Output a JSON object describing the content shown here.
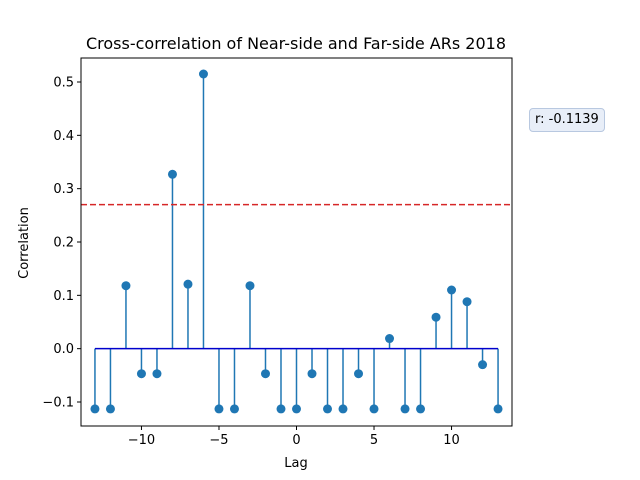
{
  "chart_data": {
    "type": "stem",
    "title": "Cross-correlation of Near-side and Far-side ARs 2018",
    "xlabel": "Lag",
    "ylabel": "Correlation",
    "xlim": [
      -13.9,
      13.9
    ],
    "ylim": [
      -0.145,
      0.545
    ],
    "xticks": [
      -10,
      -5,
      0,
      5,
      10
    ],
    "xtick_labels": [
      "−10",
      "−5",
      "0",
      "5",
      "10"
    ],
    "yticks": [
      -0.1,
      0.0,
      0.1,
      0.2,
      0.3,
      0.4,
      0.5
    ],
    "ytick_labels": [
      "−0.1",
      "0.0",
      "0.1",
      "0.2",
      "0.3",
      "0.4",
      "0.5"
    ],
    "x": [
      -13,
      -12,
      -11,
      -10,
      -9,
      -8,
      -7,
      -6,
      -5,
      -4,
      -3,
      -2,
      -1,
      0,
      1,
      2,
      3,
      4,
      5,
      6,
      7,
      8,
      9,
      10,
      11,
      12,
      13
    ],
    "y": [
      -0.113,
      -0.113,
      0.118,
      -0.047,
      -0.047,
      0.327,
      0.121,
      0.515,
      -0.113,
      -0.113,
      0.118,
      -0.047,
      -0.113,
      -0.113,
      -0.047,
      -0.113,
      -0.113,
      -0.047,
      -0.113,
      0.019,
      -0.113,
      -0.113,
      0.059,
      0.11,
      0.088,
      -0.03,
      -0.113
    ],
    "baseline": 0.0,
    "threshold": 0.27,
    "grid": false,
    "colors": {
      "stem": "#1f77b4",
      "baseline": "#0000cc",
      "threshold": "#d62728"
    }
  },
  "annotation": {
    "text": "r: -0.1139"
  }
}
